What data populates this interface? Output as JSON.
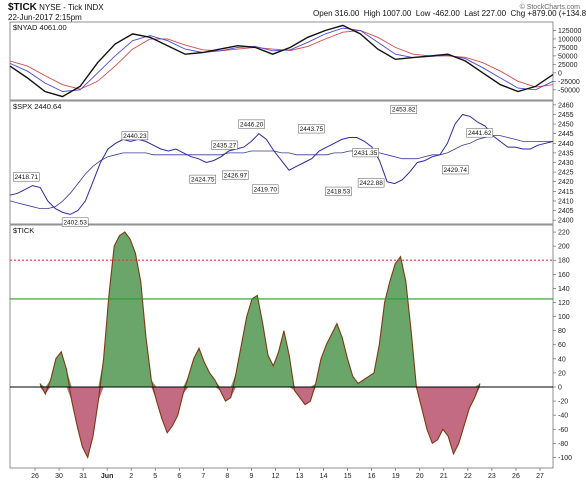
{
  "header": {
    "symbol": "$TICK",
    "description": "NYSE - Tick INDX",
    "date": "22-Jun-2017 2:15pm",
    "open": "Open 316.00",
    "high": "High 1007.00",
    "low": "Low -462.00",
    "last": "Last 227.00",
    "chg": "Chg +879.00 (+134.82%)"
  },
  "watermark": "© StockCharts.com",
  "colors": {
    "tick_pos": "#6aa66a",
    "tick_neg": "#c26b82",
    "tick_line": "#7b3b12",
    "sma_black": "#111111",
    "sma_blue": "#4a4ad8",
    "sma_red": "#d84a4a",
    "spx_line": "#2a2aa0",
    "red_level": "#e03a3a",
    "green_level": "#2f9a2f"
  },
  "chart_data": [
    {
      "type": "line",
      "label": "$NYAD 4061.00",
      "x_labels": [
        "26",
        "30",
        "31",
        "Jun",
        "2",
        "5",
        "6",
        "7",
        "8",
        "9",
        "12",
        "13",
        "14",
        "15",
        "16",
        "19",
        "20",
        "21",
        "22",
        "23",
        "26",
        "27"
      ],
      "ylim": [
        -80000,
        150000
      ],
      "y_ticks": [
        125000,
        100000,
        75000,
        50000,
        25000,
        0,
        -25000,
        -50000
      ],
      "series": [
        {
          "color": "black",
          "values": [
            20000,
            -15000,
            -55000,
            -70000,
            -40000,
            30000,
            85000,
            115000,
            105000,
            80000,
            55000,
            60000,
            70000,
            80000,
            75000,
            55000,
            75000,
            105000,
            125000,
            140000,
            115000,
            70000,
            40000,
            45000,
            50000,
            55000,
            35000,
            0,
            -35000,
            -55000,
            -40000,
            -5000
          ]
        },
        {
          "color": "blue",
          "values": [
            28000,
            5000,
            -30000,
            -55000,
            -50000,
            0,
            50000,
            95000,
            110000,
            95000,
            70000,
            60000,
            65000,
            75000,
            78000,
            65000,
            68000,
            90000,
            115000,
            132000,
            125000,
            90000,
            55000,
            45000,
            48000,
            52000,
            42000,
            15000,
            -15000,
            -45000,
            -50000,
            -25000
          ]
        },
        {
          "color": "red",
          "values": [
            35000,
            20000,
            -8000,
            -35000,
            -48000,
            -25000,
            20000,
            70000,
            100000,
            100000,
            82000,
            68000,
            65000,
            70000,
            75000,
            70000,
            66000,
            78000,
            100000,
            120000,
            125000,
            105000,
            75000,
            55000,
            50000,
            50000,
            46000,
            30000,
            5000,
            -25000,
            -42000,
            -35000
          ]
        }
      ]
    },
    {
      "type": "line",
      "label": "$SPX 2440.64",
      "ylim": [
        2398,
        2462
      ],
      "y_ticks": [
        2460,
        2455,
        2450,
        2445,
        2440,
        2435,
        2430,
        2425,
        2420,
        2415,
        2410,
        2405,
        2400
      ],
      "values": [
        2413,
        2414,
        2416,
        2418,
        2417,
        2410,
        2406,
        2404,
        2403,
        2405,
        2410,
        2420,
        2430,
        2437,
        2440,
        2442,
        2441,
        2442,
        2441,
        2439,
        2437,
        2436,
        2437,
        2435,
        2433,
        2432,
        2430,
        2431,
        2433,
        2436,
        2437,
        2438,
        2441,
        2445,
        2442,
        2436,
        2431,
        2426,
        2428,
        2430,
        2432,
        2436,
        2438,
        2440,
        2442,
        2443,
        2443,
        2441,
        2438,
        2431,
        2420,
        2419,
        2421,
        2425,
        2430,
        2431,
        2433,
        2434,
        2440,
        2450,
        2455,
        2454,
        2451,
        2449,
        2444,
        2441,
        2438,
        2438,
        2437,
        2437,
        2439,
        2440,
        2441
      ],
      "sma_values": [
        2410,
        2409,
        2408,
        2407,
        2406,
        2406,
        2407,
        2410,
        2414,
        2419,
        2424,
        2428,
        2431,
        2433,
        2434,
        2435,
        2435,
        2435,
        2435,
        2434,
        2434,
        2434,
        2434,
        2434,
        2434,
        2434,
        2434,
        2434,
        2434,
        2435,
        2435,
        2435,
        2436,
        2436,
        2436,
        2436,
        2435,
        2435,
        2434,
        2434,
        2434,
        2434,
        2434,
        2435,
        2435,
        2436,
        2436,
        2436,
        2436,
        2435,
        2434,
        2433,
        2432,
        2432,
        2432,
        2433,
        2434,
        2434,
        2435,
        2437,
        2439,
        2440,
        2442,
        2443,
        2444,
        2444,
        2443,
        2442,
        2441,
        2441,
        2441,
        2441,
        2441
      ],
      "annotations": [
        {
          "text": "2418.71",
          "x": 0.03,
          "y": 2418.71,
          "above": true
        },
        {
          "text": "2402.53",
          "x": 0.12,
          "y": 2402.53,
          "above": false
        },
        {
          "text": "2440.23",
          "x": 0.23,
          "y": 2440.23,
          "above": true
        },
        {
          "text": "2424.75",
          "x": 0.355,
          "y": 2424.75,
          "above": false
        },
        {
          "text": "2435.27",
          "x": 0.395,
          "y": 2435.27,
          "above": true
        },
        {
          "text": "2426.97",
          "x": 0.415,
          "y": 2426.97,
          "above": false
        },
        {
          "text": "2446.20",
          "x": 0.445,
          "y": 2446.2,
          "above": true
        },
        {
          "text": "2419.70",
          "x": 0.47,
          "y": 2419.7,
          "above": false
        },
        {
          "text": "2443.75",
          "x": 0.555,
          "y": 2443.75,
          "above": true
        },
        {
          "text": "2418.53",
          "x": 0.605,
          "y": 2418.53,
          "above": false
        },
        {
          "text": "2431.35",
          "x": 0.655,
          "y": 2431.35,
          "above": true
        },
        {
          "text": "2422.88",
          "x": 0.665,
          "y": 2422.88,
          "above": false
        },
        {
          "text": "2453.82",
          "x": 0.725,
          "y": 2453.82,
          "above": true
        },
        {
          "text": "2429.74",
          "x": 0.82,
          "y": 2429.74,
          "above": false
        },
        {
          "text": "2441.62",
          "x": 0.865,
          "y": 2441.62,
          "above": true
        }
      ]
    },
    {
      "type": "area",
      "label": "$TICK",
      "ylim": [
        -115,
        230
      ],
      "y_ticks": [
        220,
        200,
        180,
        160,
        140,
        120,
        100,
        80,
        60,
        40,
        20,
        0,
        -20,
        -40,
        -60,
        -80,
        -100
      ],
      "reference_lines": [
        {
          "value": 180,
          "color": "red",
          "style": "dotted"
        },
        {
          "value": 125,
          "color": "green",
          "style": "solid"
        },
        {
          "value": 0,
          "color": "black",
          "style": "solid"
        }
      ],
      "values": [
        5,
        -10,
        10,
        40,
        50,
        25,
        -20,
        -55,
        -85,
        -100,
        -70,
        -20,
        40,
        130,
        200,
        215,
        220,
        210,
        190,
        150,
        70,
        10,
        -20,
        -45,
        -65,
        -55,
        -40,
        -10,
        15,
        40,
        55,
        35,
        20,
        10,
        -5,
        -20,
        -15,
        20,
        60,
        100,
        125,
        130,
        90,
        45,
        30,
        50,
        80,
        45,
        -5,
        -15,
        -25,
        -20,
        5,
        40,
        60,
        75,
        90,
        70,
        40,
        15,
        5,
        10,
        15,
        20,
        60,
        120,
        150,
        175,
        185,
        150,
        80,
        0,
        -30,
        -60,
        -80,
        -75,
        -60,
        -70,
        -95,
        -80,
        -55,
        -30,
        -15,
        5
      ],
      "x_labels": [
        "26",
        "30",
        "31",
        "Jun",
        "2",
        "5",
        "6",
        "7",
        "8",
        "9",
        "12",
        "13",
        "14",
        "15",
        "16",
        "19",
        "20",
        "21",
        "22",
        "23",
        "26",
        "27"
      ]
    }
  ]
}
